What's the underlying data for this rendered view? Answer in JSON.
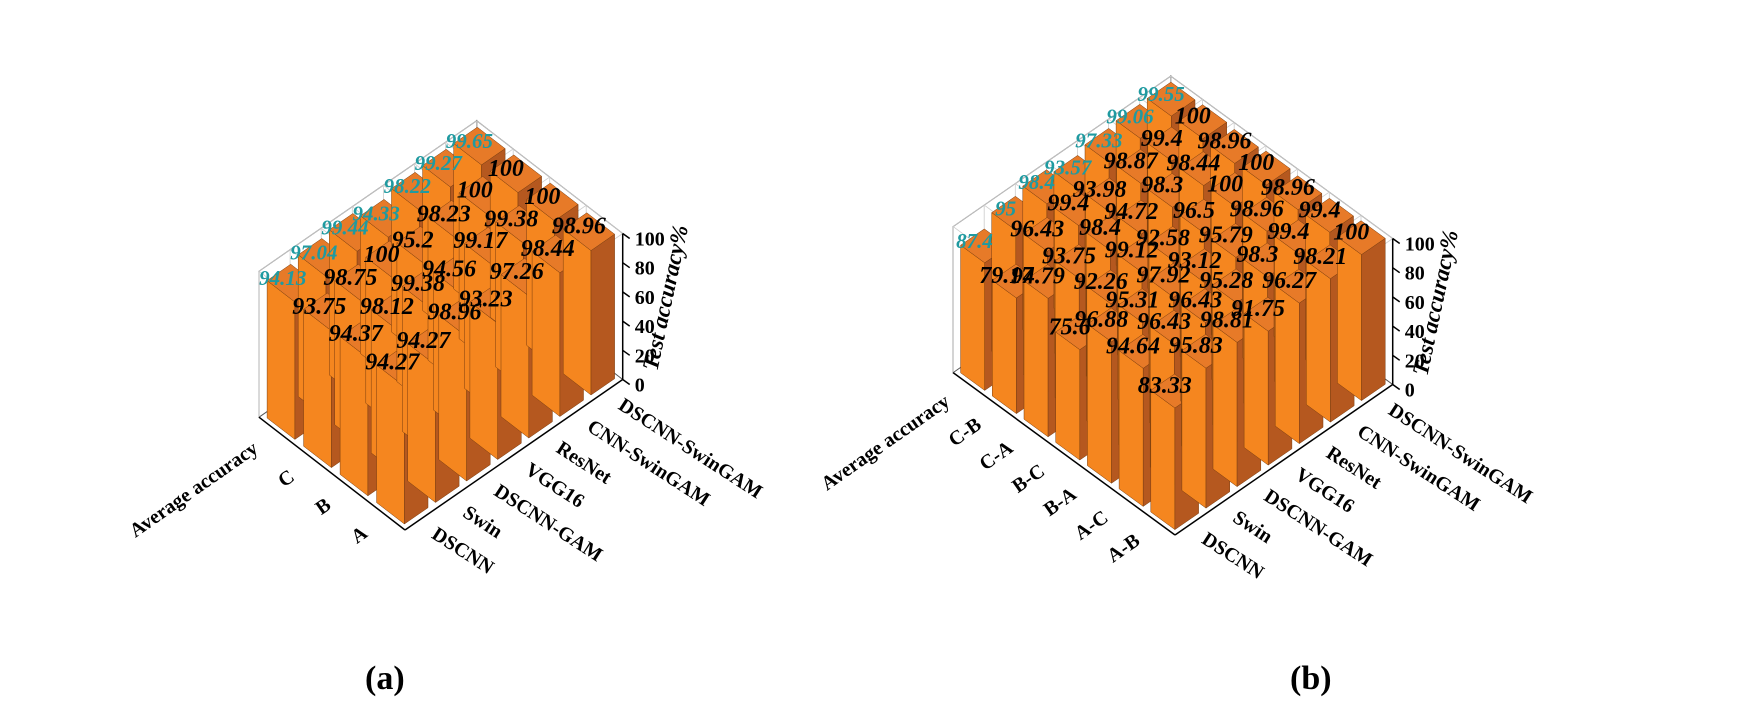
{
  "chart_data": [
    {
      "type": "bar3d",
      "panel_label": "(a)",
      "ylabel": "Test accuracy%",
      "zticks": [
        "0",
        "20",
        "40",
        "60",
        "80",
        "100"
      ],
      "zlim": [
        0,
        100
      ],
      "rows": [
        "A",
        "B",
        "C",
        "Average accuracy"
      ],
      "models": [
        "DSCNN",
        "Swin",
        "DSCNN-GAM",
        "VGG16",
        "ResNet",
        "CNN-SwinGAM",
        "DSCNN-SwinGAM"
      ],
      "values": [
        [
          94.27,
          94.27,
          98.96,
          93.23,
          97.26,
          98.44,
          98.96
        ],
        [
          94.37,
          98.12,
          99.38,
          94.56,
          99.17,
          99.38,
          100
        ],
        [
          93.75,
          98.75,
          100,
          95.2,
          98.23,
          100,
          100
        ],
        [
          94.13,
          97.04,
          99.44,
          94.33,
          98.22,
          99.27,
          99.65
        ]
      ],
      "bar_color": "#f5861f",
      "avg_label_color": "#1f9aa0"
    },
    {
      "type": "bar3d",
      "panel_label": "(b)",
      "ylabel": "Test accuracy%",
      "zticks": [
        "0",
        "20",
        "40",
        "60",
        "80",
        "100"
      ],
      "zlim": [
        0,
        100
      ],
      "rows": [
        "A-B",
        "A-C",
        "B-A",
        "B-C",
        "C-A",
        "C-B",
        "Average accuracy"
      ],
      "models": [
        "DSCNN",
        "Swin",
        "DSCNN-GAM",
        "VGG16",
        "ResNet",
        "CNN-SwinGAM",
        "DSCNN-SwinGAM"
      ],
      "values": [
        [
          83.33,
          95.83,
          98.81,
          91.75,
          96.27,
          98.21,
          100
        ],
        [
          94.64,
          96.43,
          96.43,
          95.28,
          98.3,
          99.4,
          99.4
        ],
        [
          96.88,
          95.31,
          97.92,
          93.12,
          95.79,
          98.96,
          98.96
        ],
        [
          75.6,
          92.26,
          99.12,
          92.58,
          96.5,
          100,
          100
        ],
        [
          94.79,
          93.75,
          98.4,
          94.72,
          98.3,
          98.44,
          98.96
        ],
        [
          79.17,
          96.43,
          99.4,
          93.98,
          98.87,
          99.4,
          100
        ],
        [
          87.4,
          95,
          98.4,
          93.57,
          97.33,
          99.06,
          99.55
        ]
      ],
      "bar_color": "#f5861f",
      "avg_label_color": "#1f9aa0"
    }
  ]
}
